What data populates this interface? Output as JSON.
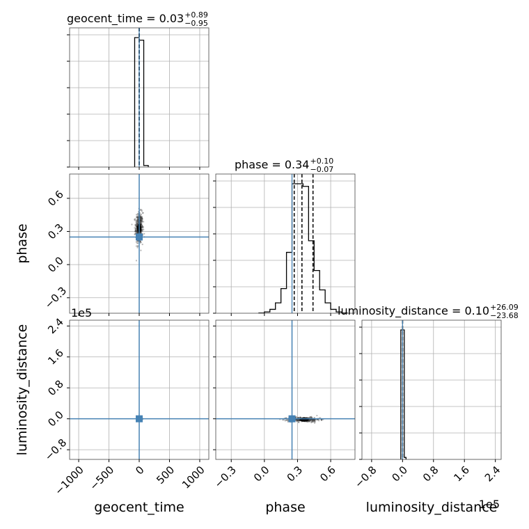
{
  "chart_data": {
    "type": "corner",
    "parameters": [
      "geocent_time",
      "phase",
      "luminosity_distance"
    ],
    "axis_labels": [
      "geocent_time",
      "phase",
      "luminosity_distance"
    ],
    "panel_titles": [
      {
        "name": "geocent_time",
        "value": "0.03",
        "plus": "+0.89",
        "minus": "−0.95"
      },
      {
        "name": "phase",
        "value": "0.34",
        "plus": "+0.10",
        "minus": "−0.07"
      },
      {
        "name": "luminosity_distance",
        "value": "0.10",
        "plus": "+26.09",
        "minus": "−23.68"
      }
    ],
    "offset_text": "1e5",
    "truths": {
      "geocent_time": 0.0,
      "phase": 0.25,
      "luminosity_distance": 0.0
    },
    "ranges": {
      "geocent_time": [
        -1150,
        1150
      ],
      "phase": [
        -0.44,
        0.82
      ],
      "luminosity_distance": [
        -1.05,
        2.55
      ]
    },
    "ticks": {
      "geocent_time": [
        -1000,
        -500,
        0,
        500,
        1000
      ],
      "phase": [
        -0.3,
        0.0,
        0.3,
        0.6
      ],
      "luminosity_distance": [
        -0.8,
        0.0,
        0.8,
        1.6,
        2.4
      ]
    },
    "tick_labels": {
      "geocent_time": [
        "−1000",
        "−500",
        "0",
        "500",
        "1000"
      ],
      "phase": [
        "−0.3",
        "0.0",
        "0.3",
        "0.6"
      ],
      "luminosity_distance": [
        "−0.8",
        "0.0",
        "0.8",
        "1.6",
        "2.4"
      ]
    },
    "quantiles": {
      "geocent_time": [
        -0.92,
        0.03,
        0.92
      ],
      "phase": [
        0.27,
        0.34,
        0.44
      ],
      "luminosity_distance": [
        -0.0002,
        1e-06,
        0.0003
      ]
    },
    "histograms": {
      "geocent_time": {
        "edges": [
          -75,
          0,
          75,
          150
        ],
        "counts": [
          1.0,
          0.98,
          0.012
        ]
      },
      "phase": {
        "edges": [
          -0.05,
          0.0,
          0.05,
          0.1,
          0.15,
          0.2,
          0.25,
          0.3,
          0.35,
          0.4,
          0.45,
          0.5,
          0.55,
          0.6,
          0.65,
          0.7,
          0.75
        ],
        "counts": [
          0.002,
          0.01,
          0.03,
          0.08,
          0.19,
          0.47,
          1.0,
          1.0,
          0.98,
          0.56,
          0.33,
          0.18,
          0.08,
          0.03,
          0.01,
          0.002
        ]
      },
      "luminosity_distance": {
        "edges": [
          -0.045,
          0.0,
          0.045,
          0.09
        ],
        "counts": [
          1.0,
          1.0,
          0.015
        ]
      }
    },
    "scatter_points": {
      "geocent_time_vs_phase": {
        "x_mean": 0,
        "x_sd": 30,
        "y_mean": 0.33,
        "y_sd": 0.07,
        "n": 500
      },
      "geocent_time_vs_luminosity_distance": {
        "x_mean": 0,
        "x_sd": 18,
        "y_mean": -0.01,
        "y_sd": 0.015,
        "n": 150
      },
      "phase_vs_luminosity_distance": {
        "x_mean": 0.36,
        "x_sd": 0.07,
        "y_mean": -0.02,
        "y_sd": 0.03,
        "n": 400
      }
    },
    "grid": true,
    "truth_color": "#4682b4",
    "line_color": "#000000",
    "grid_color": "#b0b0b0"
  }
}
